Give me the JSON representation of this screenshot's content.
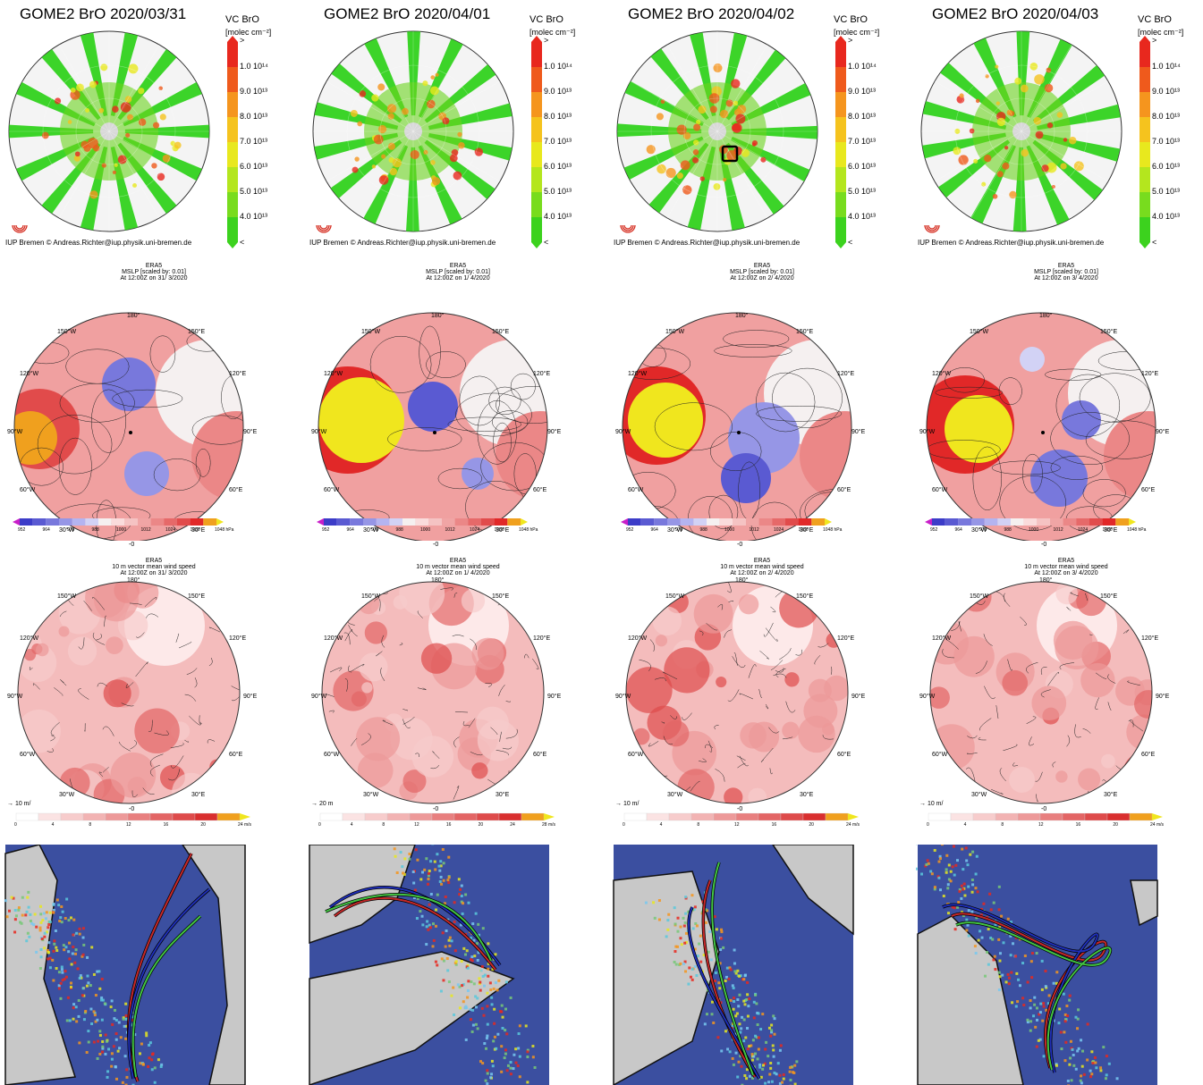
{
  "bro_unit_label": "VC BrO",
  "bro_unit_text": "[molec cm⁻²]",
  "bro_ticks": [
    ">",
    "1.0 10¹⁴",
    "9.0 10¹³",
    "8.0 10¹³",
    "7.0 10¹³",
    "6.0 10¹³",
    "5.0 10¹³",
    "4.0 10¹³",
    "<"
  ],
  "bro_colors": [
    "#e8281e",
    "#ef5a1c",
    "#f5951e",
    "#f5c31e",
    "#e8e81e",
    "#b4e61e",
    "#78dc1e",
    "#3cd21e"
  ],
  "bro_credit": "IUP Bremen © Andreas.Richter@iup.physik.uni-bremen.de",
  "university_logo_text": "UNIVERSITÄT BREMEN",
  "era5_label": "ERA5",
  "mslp_label": "MSLP [scaled by: 0.01]",
  "wind_label": "10 m vector mean wind speed",
  "longitude_labels": [
    "180°",
    "150°W",
    "150°E",
    "120°W",
    "120°E",
    "90°W",
    "90°E",
    "60°W",
    "60°E",
    "30°W",
    "30°E",
    "-0"
  ],
  "mslp_colorbar": {
    "ticks": [
      "952",
      "964",
      "976",
      "988",
      "1000",
      "1012",
      "1024",
      "1036",
      "1048 hPa"
    ],
    "colors": [
      "#c81ec8",
      "#3c3cc8",
      "#5a5ad2",
      "#7878dc",
      "#9696e6",
      "#b4b4f0",
      "#d2d2f5",
      "#f5f0f0",
      "#fadcdc",
      "#f5c3c3",
      "#f0a5a5",
      "#eb8787",
      "#e66969",
      "#e14b4b",
      "#e12828",
      "#f0a01e",
      "#f0e61e"
    ]
  },
  "wind_colorbar_colors": [
    "#ffffff",
    "#fbe3e3",
    "#f7cccc",
    "#f2b3b3",
    "#ed9999",
    "#e87f7f",
    "#e36565",
    "#de4b4b",
    "#d92f2f",
    "#f0a01e",
    "#f0e61e"
  ],
  "trajectory_colors": {
    "ocean": "#3b4fa0",
    "land": "#c8c8c8",
    "coast": "#111111",
    "traj_red": "#c62828",
    "traj_green": "#43c443",
    "traj_blue": "#1f2fb8"
  },
  "panels": [
    {
      "bro_title": "GOME2 BrO 2020/03/31",
      "mslp_time": "At 12:00Z on 31/ 3/2020",
      "wind_time": "At 12:00Z on 31/ 3/2020",
      "wind_arrow": "→ 10 m/",
      "wind_ticks": [
        "0",
        "4",
        "8",
        "12",
        "16",
        "20",
        "24 m/s"
      ]
    },
    {
      "bro_title": "GOME2 BrO 2020/04/01",
      "mslp_time": "At 12:00Z on 1/ 4/2020",
      "wind_time": "At 12:00Z on 1/ 4/2020",
      "wind_arrow": "→ 20 m",
      "wind_ticks": [
        "0",
        "4",
        "8",
        "12",
        "16",
        "20",
        "24",
        "28 m/s"
      ]
    },
    {
      "bro_title": "GOME2 BrO 2020/04/02",
      "mslp_time": "At 12:00Z on 2/ 4/2020",
      "wind_time": "At 12:00Z on 2/ 4/2020",
      "wind_arrow": "→ 10 m/",
      "wind_ticks": [
        "0",
        "4",
        "8",
        "12",
        "16",
        "20",
        "24 m/s"
      ]
    },
    {
      "bro_title": "GOME2 BrO 2020/04/03",
      "mslp_time": "At 12:00Z on 3/ 4/2020",
      "wind_time": "At 12:00Z on 3/ 4/2020",
      "wind_arrow": "→ 10 m/",
      "wind_ticks": [
        "0",
        "4",
        "8",
        "12",
        "16",
        "20",
        "24 m/s"
      ]
    }
  ]
}
